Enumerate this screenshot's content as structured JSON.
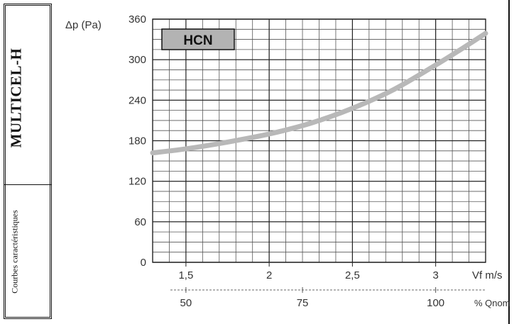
{
  "side_panel": {
    "product_name": "MULTICEL-H",
    "subtitle": "Courbes caractéristiques"
  },
  "chart_data": {
    "type": "line",
    "title": "",
    "legend_label": "HCN",
    "ylabel": "Δp (Pa)",
    "xlabel": "Vf m/s",
    "x2label": "% Qnom",
    "ylim": [
      0,
      360
    ],
    "yticks": [
      0,
      60,
      120,
      180,
      240,
      300,
      360
    ],
    "yticklabels": [
      "0",
      "60",
      "120",
      "180",
      "240",
      "300",
      "360"
    ],
    "xlim": [
      1.3,
      3.3
    ],
    "xticks": [
      1.5,
      2,
      2.5,
      3
    ],
    "xticklabels": [
      "1,5",
      "2",
      "2,5",
      "3"
    ],
    "x2ticks_at_vf": [
      1.5,
      2.2,
      3.0
    ],
    "x2ticklabels": [
      "50",
      "75",
      "100"
    ],
    "grid": true,
    "series": [
      {
        "name": "HCN",
        "color": "#b8b8b8",
        "x": [
          1.3,
          1.5,
          1.75,
          2.0,
          2.25,
          2.5,
          2.75,
          3.0,
          3.15,
          3.3
        ],
        "y": [
          162,
          168,
          178,
          190,
          206,
          228,
          256,
          292,
          315,
          339
        ]
      }
    ]
  }
}
